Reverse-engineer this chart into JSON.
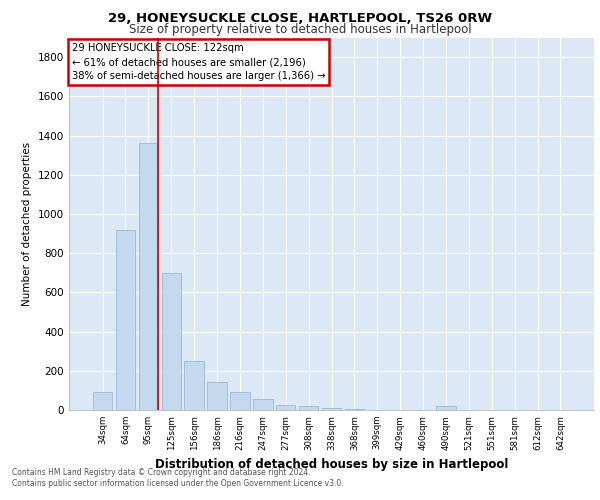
{
  "title1": "29, HONEYSUCKLE CLOSE, HARTLEPOOL, TS26 0RW",
  "title2": "Size of property relative to detached houses in Hartlepool",
  "xlabel": "Distribution of detached houses by size in Hartlepool",
  "ylabel": "Number of detached properties",
  "categories": [
    "34sqm",
    "64sqm",
    "95sqm",
    "125sqm",
    "156sqm",
    "186sqm",
    "216sqm",
    "247sqm",
    "277sqm",
    "308sqm",
    "338sqm",
    "368sqm",
    "399sqm",
    "429sqm",
    "460sqm",
    "490sqm",
    "521sqm",
    "551sqm",
    "581sqm",
    "612sqm",
    "642sqm"
  ],
  "values": [
    90,
    920,
    1360,
    700,
    250,
    145,
    90,
    55,
    25,
    20,
    10,
    5,
    2,
    0,
    0,
    20,
    0,
    0,
    0,
    0,
    0
  ],
  "bar_color": "#c5d9ee",
  "bar_edge_color": "#9ab8d8",
  "marker_line_index": 2,
  "annotation_lines": [
    "29 HONEYSUCKLE CLOSE: 122sqm",
    "← 61% of detached houses are smaller (2,196)",
    "38% of semi-detached houses are larger (1,366) →"
  ],
  "annotation_box_color": "#ffffff",
  "annotation_box_edge": "#cc0000",
  "ylim": [
    0,
    1900
  ],
  "yticks": [
    0,
    200,
    400,
    600,
    800,
    1000,
    1200,
    1400,
    1600,
    1800
  ],
  "footer": "Contains HM Land Registry data © Crown copyright and database right 2024.\nContains public sector information licensed under the Open Government Licence v3.0.",
  "bg_color": "#ffffff",
  "plot_bg": "#dce8f5",
  "grid_color": "#ffffff",
  "marker_line_color": "#cc0000"
}
